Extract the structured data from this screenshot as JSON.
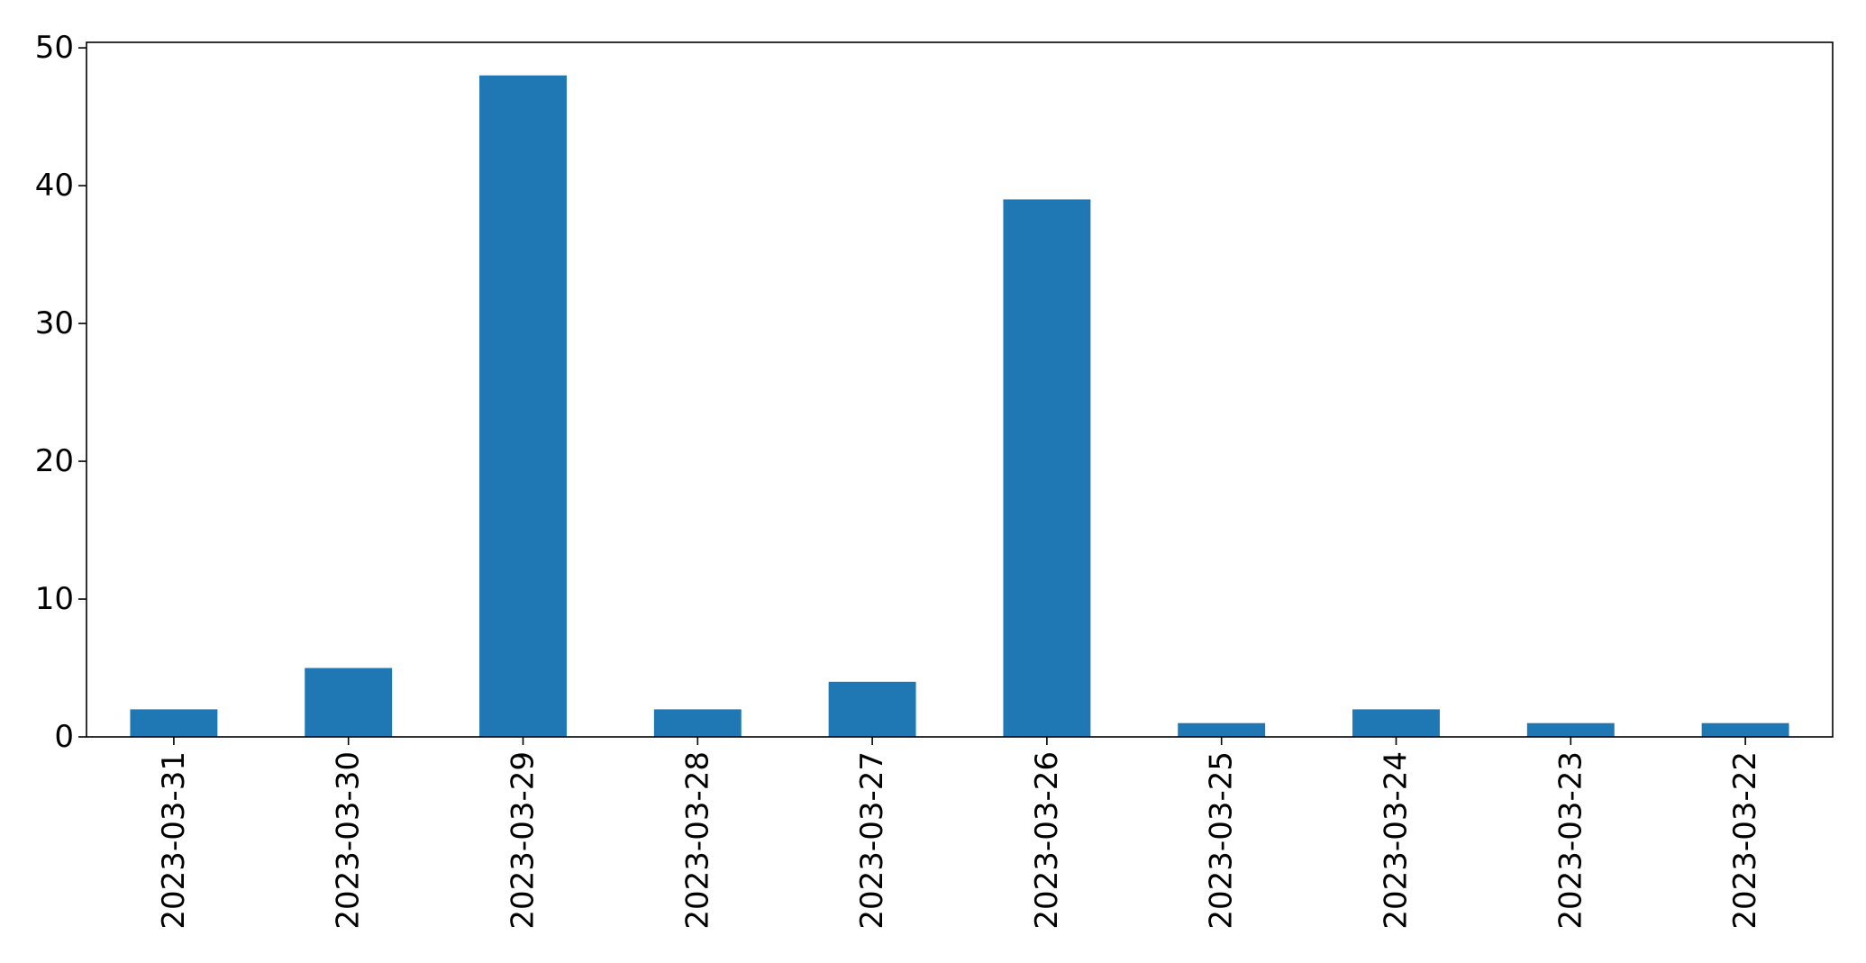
{
  "chart_data": {
    "type": "bar",
    "categories": [
      "2023-03-31",
      "2023-03-30",
      "2023-03-29",
      "2023-03-28",
      "2023-03-27",
      "2023-03-26",
      "2023-03-25",
      "2023-03-24",
      "2023-03-23",
      "2023-03-22"
    ],
    "values": [
      2,
      5,
      48,
      2,
      4,
      39,
      1,
      2,
      1,
      1
    ],
    "title": "",
    "xlabel": "",
    "ylabel": "",
    "ylim": [
      0,
      50.4
    ],
    "yticks": [
      0,
      10,
      20,
      30,
      40,
      50
    ],
    "grid": false,
    "legend": "none",
    "bar_color": "#1f77b4",
    "axis_color": "#000000"
  }
}
